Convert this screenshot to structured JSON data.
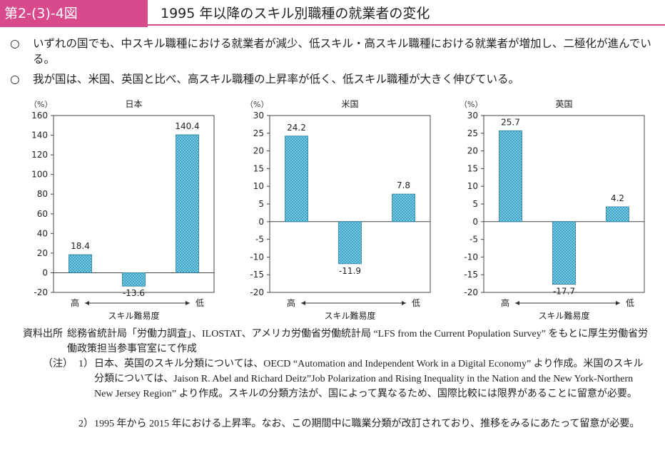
{
  "header": {
    "figure_label": "第2-(3)-4図",
    "title": "1995 年以降のスキル別職種の就業者の変化"
  },
  "bullets": [
    {
      "mark": "○",
      "text": "いずれの国でも、中スキル職種における就業者が減少、低スキル・高スキル職種における就業者が増加し、二極化が進んでいる。"
    },
    {
      "mark": "○",
      "text": "我が国は、米国、英国と比べ、高スキル職種の上昇率が低く、低スキル職種が大きく伸びている。"
    }
  ],
  "chart_data": [
    {
      "type": "bar",
      "title": "日本",
      "ylabel": "（%）",
      "ylim": [
        -20,
        160
      ],
      "yticks": [
        -20,
        0,
        20,
        40,
        60,
        80,
        100,
        120,
        140,
        160
      ],
      "values": [
        18.4,
        -13.6,
        140.4
      ],
      "value_labels": [
        "18.4",
        "-13.6",
        "140.4"
      ],
      "x_left": "高",
      "x_right": "低",
      "xlabel": "スキル難易度",
      "bar_color": "#3aa6c9"
    },
    {
      "type": "bar",
      "title": "米国",
      "ylabel": "（%）",
      "ylim": [
        -20,
        30
      ],
      "yticks": [
        -20,
        -15,
        -10,
        -5,
        0,
        5,
        10,
        15,
        20,
        25,
        30
      ],
      "values": [
        24.2,
        -11.9,
        7.8
      ],
      "value_labels": [
        "24.2",
        "-11.9",
        "7.8"
      ],
      "x_left": "高",
      "x_right": "低",
      "xlabel": "スキル難易度",
      "bar_color": "#3aa6c9"
    },
    {
      "type": "bar",
      "title": "英国",
      "ylabel": "（%）",
      "ylim": [
        -20,
        30
      ],
      "yticks": [
        -20,
        -15,
        -10,
        -5,
        0,
        5,
        10,
        15,
        20,
        25,
        30
      ],
      "values": [
        25.7,
        -17.7,
        4.2
      ],
      "value_labels": [
        "25.7",
        "-17.7",
        "4.2"
      ],
      "x_left": "高",
      "x_right": "低",
      "xlabel": "スキル難易度",
      "bar_color": "#3aa6c9"
    }
  ],
  "source": {
    "label": "資料出所",
    "text": "総務省統計局「労働力調査」、ILOSTAT、アメリカ労働省労働統計局 “LFS from the Current Population Survey” をもとに厚生労働省労働政策担当参事官室にて作成"
  },
  "notes": {
    "label": "（注）",
    "items": [
      {
        "num": "1）",
        "text": "日本、英国のスキル分類については、OECD “Automation and Independent Work in a Digital Economy” より作成。米国のスキル分類については、Jaison R. Abel and Richard Deitz”Job Polarization and Rising Inequality in the Nation and the New York-Northern New Jersey Region” より作成。スキルの分類方法が、国によって異なるため、国際比較には限界があることに留意が必要。"
      },
      {
        "num": "2）",
        "text": "1995 年から 2015 年における上昇率。なお、この期間中に職業分類が改訂されており、推移をみるにあたって留意が必要。"
      }
    ]
  }
}
